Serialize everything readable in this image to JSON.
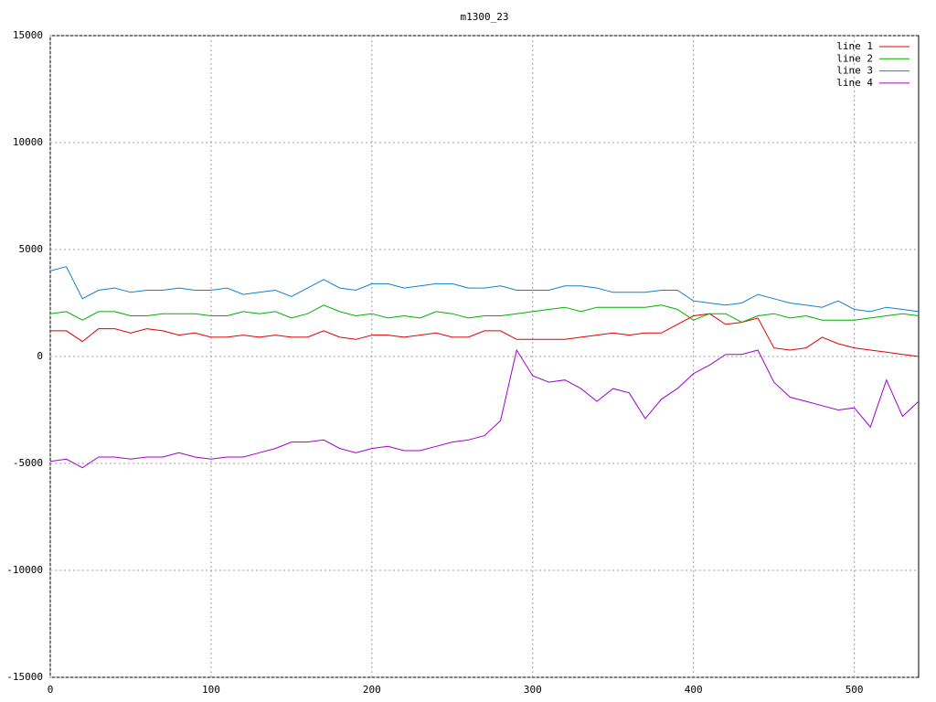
{
  "chart_data": {
    "type": "line",
    "title": "m1300_23",
    "x": [
      0,
      10,
      20,
      30,
      40,
      50,
      60,
      70,
      80,
      90,
      100,
      110,
      120,
      130,
      140,
      150,
      160,
      170,
      180,
      190,
      200,
      210,
      220,
      230,
      240,
      250,
      260,
      270,
      280,
      290,
      300,
      310,
      320,
      330,
      340,
      350,
      360,
      370,
      380,
      390,
      400,
      410,
      420,
      430,
      440,
      450,
      460,
      470,
      480,
      490,
      500,
      510,
      520,
      530,
      540
    ],
    "xlim": [
      0,
      540
    ],
    "xticks": [
      0,
      100,
      200,
      300,
      400,
      500
    ],
    "ylim": [
      -15000,
      15000
    ],
    "yticks": [
      -15000,
      -10000,
      -5000,
      0,
      5000,
      10000,
      15000
    ],
    "grid": true,
    "legend": "top-right",
    "series": [
      {
        "name": "line 1",
        "color": "#e00000",
        "values": [
          1200,
          1200,
          700,
          1300,
          1300,
          1100,
          1300,
          1200,
          1000,
          1100,
          900,
          900,
          1000,
          900,
          1000,
          900,
          900,
          1200,
          900,
          800,
          1000,
          1000,
          900,
          1000,
          1100,
          900,
          900,
          1200,
          1200,
          800,
          800,
          800,
          800,
          900,
          1000,
          1100,
          1000,
          1100,
          1100,
          1500,
          1900,
          2000,
          1500,
          1600,
          1800,
          400,
          300,
          400,
          900,
          600,
          400,
          300,
          200,
          100,
          0
        ]
      },
      {
        "name": "line 2",
        "color": "#00b000",
        "values": [
          2000,
          2100,
          1700,
          2100,
          2100,
          1900,
          1900,
          2000,
          2000,
          2000,
          1900,
          1900,
          2100,
          2000,
          2100,
          1800,
          2000,
          2400,
          2100,
          1900,
          2000,
          1800,
          1900,
          1800,
          2100,
          2000,
          1800,
          1900,
          1900,
          2000,
          2100,
          2200,
          2300,
          2100,
          2300,
          2300,
          2300,
          2300,
          2400,
          2200,
          1700,
          2000,
          2000,
          1600,
          1900,
          2000,
          1800,
          1900,
          1700,
          1700,
          1700,
          1800,
          1900,
          2000,
          1900
        ]
      },
      {
        "name": "line 3",
        "color": "#1080d0",
        "values": [
          4000,
          4200,
          2700,
          3100,
          3200,
          3000,
          3100,
          3100,
          3200,
          3100,
          3100,
          3200,
          2900,
          3000,
          3100,
          2800,
          3200,
          3600,
          3200,
          3100,
          3400,
          3400,
          3200,
          3300,
          3400,
          3400,
          3200,
          3200,
          3300,
          3100,
          3100,
          3100,
          3300,
          3300,
          3200,
          3000,
          3000,
          3000,
          3100,
          3100,
          2600,
          2500,
          2400,
          2500,
          2900,
          2700,
          2500,
          2400,
          2300,
          2600,
          2200,
          2100,
          2300,
          2200,
          2100
        ]
      },
      {
        "name": "line 4",
        "color": "#a000d0",
        "values": [
          -4900,
          -4800,
          -5200,
          -4700,
          -4700,
          -4800,
          -4700,
          -4700,
          -4500,
          -4700,
          -4800,
          -4700,
          -4700,
          -4500,
          -4300,
          -4000,
          -4000,
          -3900,
          -4300,
          -4500,
          -4300,
          -4200,
          -4400,
          -4400,
          -4200,
          -4000,
          -3900,
          -3700,
          -3000,
          300,
          -900,
          -1200,
          -1100,
          -1500,
          -2100,
          -1500,
          -1700,
          -2900,
          -2000,
          -1500,
          -800,
          -400,
          100,
          100,
          300,
          -1200,
          -1900,
          -2100,
          -2300,
          -2500,
          -2400,
          -3300,
          -1100,
          -2800,
          -2100
        ]
      }
    ]
  }
}
